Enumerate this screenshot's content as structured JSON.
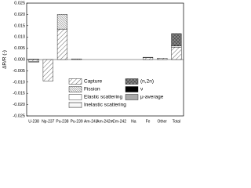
{
  "chart_data": {
    "type": "bar",
    "stacked": true,
    "ylabel": "ΔR/R (-)",
    "categories": [
      "U-238",
      "Np-237",
      "Pu-238",
      "Pu-239",
      "Am-241",
      "Am-242m",
      "Cm-242",
      "Na",
      "Fe",
      "Other",
      "Total"
    ],
    "series": [
      {
        "name": "Capture",
        "color": "#ffffff",
        "hatch": "sparse",
        "values": [
          -0.0008,
          -0.0095,
          0.0135,
          0,
          0,
          0,
          0,
          0,
          0.0008,
          0.0006,
          0.0055
        ]
      },
      {
        "name": "Fission",
        "color": "#ffffff",
        "hatch": "dense",
        "values": [
          0.0002,
          0,
          0.0065,
          0.0003,
          0,
          0,
          0,
          0,
          0,
          0,
          0
        ]
      },
      {
        "name": "Elastic scattering",
        "color": "#ffffff",
        "hatch": "none",
        "values": [
          0,
          0,
          0,
          0,
          0,
          0,
          0,
          0,
          0.0002,
          0,
          0.0005
        ]
      },
      {
        "name": "Inelastic scattering",
        "color": "#ffffff",
        "hatch": "horizontal",
        "values": [
          -0.0004,
          0,
          0,
          0,
          0,
          0,
          0,
          0,
          0,
          0,
          0
        ]
      },
      {
        "name": "(n,2n)",
        "color": "#888888",
        "hatch": "cross",
        "values": [
          0,
          0,
          0,
          0,
          0,
          0,
          0,
          0,
          0,
          0,
          0.0055
        ]
      },
      {
        "name": "ν",
        "color": "#000000",
        "hatch": "none",
        "values": [
          0,
          0,
          0,
          0,
          0,
          0,
          0,
          0,
          0,
          0,
          0
        ]
      },
      {
        "name": "μ-average",
        "color": "#aaaaaa",
        "hatch": "none",
        "values": [
          0,
          0,
          0,
          0,
          0,
          0,
          0,
          0,
          0,
          0,
          0
        ]
      }
    ],
    "ylim": [
      -0.025,
      0.025
    ],
    "yticks": [
      {
        "value": -0.025,
        "label": "-0.025"
      },
      {
        "value": -0.02,
        "label": "-0.020"
      },
      {
        "value": -0.015,
        "label": "-0.015"
      },
      {
        "value": -0.01,
        "label": "-0.010"
      },
      {
        "value": -0.005,
        "label": "-0.005"
      },
      {
        "value": 0,
        "label": "0.000"
      },
      {
        "value": 0.005,
        "label": "0.005"
      },
      {
        "value": 0.01,
        "label": "0.010"
      },
      {
        "value": 0.015,
        "label": "0.015"
      },
      {
        "value": 0.02,
        "label": "0.020"
      },
      {
        "value": 0.025,
        "label": "0.025"
      }
    ]
  }
}
